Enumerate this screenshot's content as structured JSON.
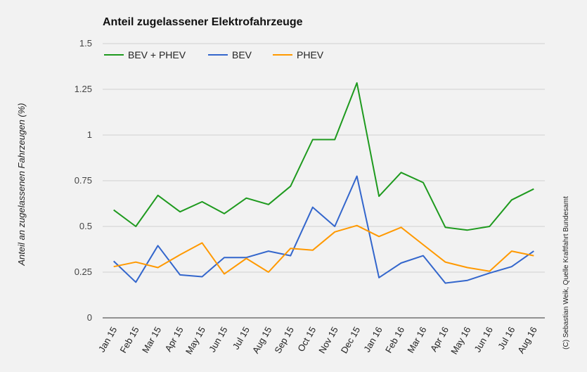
{
  "chart_data": {
    "type": "line",
    "title": "Anteil zugelassener Elektrofahrzeuge",
    "ylabel": "Anteil an zugelassenen Fahrzeugen (%)",
    "xlabel": "",
    "credit": "(C) Sebastian Weik, Quelle Kraftfahrt Bundesamt",
    "ylim": [
      0,
      1.5
    ],
    "yticks": [
      "0",
      "0.25",
      "0.5",
      "0.75",
      "1",
      "1.25",
      "1.5"
    ],
    "yticks_values": [
      0,
      0.25,
      0.5,
      0.75,
      1,
      1.25,
      1.5
    ],
    "grid": true,
    "legend_position": "top-left",
    "categories": [
      "Jan 15",
      "Feb 15",
      "Mar 15",
      "Apr 15",
      "May 15",
      "Jun 15",
      "Jul 15",
      "Aug 15",
      "Sep 15",
      "Oct 15",
      "Nov 15",
      "Dec 15",
      "Jan 16",
      "Feb 16",
      "Mar 16",
      "Apr 16",
      "May 16",
      "Jun 16",
      "Jul 16",
      "Aug 16"
    ],
    "series": [
      {
        "name": "BEV + PHEV",
        "color": "#1e9a1e",
        "values": [
          0.59,
          0.5,
          0.67,
          0.58,
          0.635,
          0.57,
          0.655,
          0.62,
          0.72,
          0.975,
          0.975,
          1.285,
          0.665,
          0.795,
          0.74,
          0.495,
          0.48,
          0.5,
          0.645,
          0.705
        ]
      },
      {
        "name": "BEV",
        "color": "#3366cc",
        "values": [
          0.31,
          0.195,
          0.395,
          0.235,
          0.225,
          0.33,
          0.33,
          0.365,
          0.34,
          0.605,
          0.5,
          0.775,
          0.22,
          0.3,
          0.34,
          0.19,
          0.205,
          0.245,
          0.28,
          0.365
        ]
      },
      {
        "name": "PHEV",
        "color": "#ff9900",
        "values": [
          0.28,
          0.305,
          0.275,
          0.345,
          0.41,
          0.24,
          0.325,
          0.25,
          0.38,
          0.37,
          0.47,
          0.505,
          0.445,
          0.495,
          0.4,
          0.305,
          0.275,
          0.255,
          0.365,
          0.34
        ]
      }
    ]
  }
}
